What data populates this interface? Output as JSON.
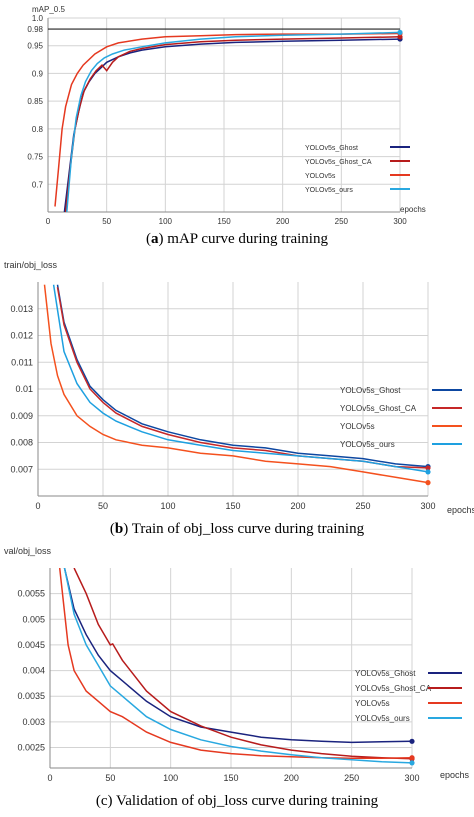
{
  "panels": [
    {
      "caption_letter": "a",
      "caption_text": " mAP curve during training",
      "caption_prefix": "(",
      "caption_suffix": ")"
    },
    {
      "caption_letter": "b",
      "caption_text": " Train of obj_loss curve during training",
      "caption_prefix": "(",
      "caption_suffix": ")"
    },
    {
      "caption_letter": "",
      "caption_text": "(c) Validation of obj_loss curve during training",
      "caption_prefix": "",
      "caption_suffix": ""
    }
  ],
  "chart_data": [
    {
      "type": "line",
      "ylabel": "mAP_0.5",
      "xlabel": "epochs",
      "xlim": [
        0,
        300
      ],
      "ylim": [
        0.65,
        1.0
      ],
      "xticks": [
        0,
        50,
        100,
        150,
        200,
        250,
        300
      ],
      "yticks": [
        {
          "v": 0.7,
          "label": "0.7"
        },
        {
          "v": 0.75,
          "label": "0.75"
        },
        {
          "v": 0.8,
          "label": "0.8"
        },
        {
          "v": 0.85,
          "label": "0.85"
        },
        {
          "v": 0.9,
          "label": "0.9"
        },
        {
          "v": 0.95,
          "label": "0.95"
        },
        {
          "v": 0.98,
          "label": "0.98"
        },
        {
          "v": 1.0,
          "label": "1.0"
        }
      ],
      "reference_line": 0.98,
      "grid": true,
      "legend_position": "right",
      "series": [
        {
          "name": "YOLOv5s_Ghost",
          "color": "#1a237e",
          "x": [
            14,
            18,
            22,
            26,
            30,
            35,
            40,
            45,
            50,
            60,
            70,
            80,
            100,
            130,
            160,
            200,
            250,
            300
          ],
          "y": [
            0.65,
            0.72,
            0.79,
            0.83,
            0.865,
            0.885,
            0.9,
            0.91,
            0.92,
            0.93,
            0.937,
            0.942,
            0.948,
            0.953,
            0.956,
            0.958,
            0.96,
            0.962
          ]
        },
        {
          "name": "YOLOv5s_Ghost_CA",
          "color": "#b71c1c",
          "x": [
            15,
            19,
            23,
            27,
            31,
            36,
            41,
            46,
            50,
            55,
            60,
            70,
            80,
            100,
            130,
            160,
            200,
            250,
            300
          ],
          "y": [
            0.65,
            0.73,
            0.8,
            0.84,
            0.87,
            0.89,
            0.905,
            0.915,
            0.905,
            0.92,
            0.93,
            0.94,
            0.945,
            0.952,
            0.957,
            0.96,
            0.962,
            0.964,
            0.966
          ]
        },
        {
          "name": "YOLOv5s",
          "color": "#e53920",
          "x": [
            6,
            9,
            12,
            15,
            20,
            25,
            30,
            40,
            50,
            60,
            80,
            100,
            130,
            160,
            200,
            250,
            300
          ],
          "y": [
            0.66,
            0.73,
            0.8,
            0.84,
            0.88,
            0.9,
            0.915,
            0.935,
            0.948,
            0.955,
            0.962,
            0.966,
            0.968,
            0.97,
            0.971,
            0.971,
            0.972
          ]
        },
        {
          "name": "YOLOv5s_ours",
          "color": "#29a8e0",
          "x": [
            16,
            20,
            24,
            28,
            32,
            37,
            42,
            48,
            55,
            65,
            80,
            100,
            130,
            160,
            200,
            250,
            300
          ],
          "y": [
            0.65,
            0.75,
            0.82,
            0.86,
            0.885,
            0.905,
            0.918,
            0.928,
            0.935,
            0.942,
            0.948,
            0.955,
            0.962,
            0.966,
            0.969,
            0.971,
            0.974
          ]
        }
      ]
    },
    {
      "type": "line",
      "ylabel": "train/obj_loss",
      "xlabel": "epochs",
      "xlim": [
        0,
        300
      ],
      "ylim": [
        0.006,
        0.014
      ],
      "xticks": [
        0,
        50,
        100,
        150,
        200,
        250,
        300
      ],
      "yticks": [
        {
          "v": 0.007,
          "label": "0.007"
        },
        {
          "v": 0.008,
          "label": "0.008"
        },
        {
          "v": 0.009,
          "label": "0.009"
        },
        {
          "v": 0.01,
          "label": "0.01"
        },
        {
          "v": 0.011,
          "label": "0.011"
        },
        {
          "v": 0.012,
          "label": "0.012"
        },
        {
          "v": 0.013,
          "label": "0.013"
        }
      ],
      "grid": true,
      "legend_position": "right",
      "series": [
        {
          "name": "YOLOv5s_Ghost",
          "color": "#0d47a1",
          "x": [
            15,
            20,
            30,
            40,
            50,
            60,
            80,
            100,
            125,
            150,
            175,
            200,
            225,
            250,
            275,
            300
          ],
          "y": [
            0.0139,
            0.0125,
            0.0111,
            0.0101,
            0.0096,
            0.0092,
            0.0087,
            0.0084,
            0.0081,
            0.0079,
            0.0078,
            0.0076,
            0.0075,
            0.0074,
            0.0072,
            0.0071
          ]
        },
        {
          "name": "YOLOv5s_Ghost_CA",
          "color": "#c62828",
          "x": [
            15,
            20,
            30,
            40,
            50,
            60,
            80,
            100,
            125,
            150,
            175,
            200,
            225,
            250,
            275,
            300
          ],
          "y": [
            0.0138,
            0.0124,
            0.011,
            0.01,
            0.0095,
            0.0091,
            0.0086,
            0.0083,
            0.008,
            0.0078,
            0.0077,
            0.0075,
            0.0074,
            0.0073,
            0.0071,
            0.00705
          ]
        },
        {
          "name": "YOLOv5s",
          "color": "#f4511e",
          "x": [
            5,
            10,
            15,
            20,
            30,
            40,
            50,
            60,
            80,
            100,
            125,
            150,
            175,
            200,
            225,
            250,
            275,
            300
          ],
          "y": [
            0.0139,
            0.0117,
            0.0105,
            0.0098,
            0.009,
            0.0086,
            0.0083,
            0.0081,
            0.0079,
            0.0078,
            0.0076,
            0.0075,
            0.0073,
            0.0072,
            0.0071,
            0.0069,
            0.0067,
            0.0065
          ]
        },
        {
          "name": "YOLOv5s_ours",
          "color": "#1ea0e0",
          "x": [
            12,
            20,
            30,
            40,
            50,
            60,
            80,
            100,
            125,
            150,
            175,
            200,
            225,
            250,
            275,
            300
          ],
          "y": [
            0.0139,
            0.0114,
            0.0102,
            0.0095,
            0.0091,
            0.0088,
            0.0084,
            0.0081,
            0.0079,
            0.0077,
            0.0076,
            0.0075,
            0.0074,
            0.0073,
            0.0071,
            0.0069
          ]
        }
      ]
    },
    {
      "type": "line",
      "ylabel": "val/obj_loss",
      "xlabel": "epochs",
      "xlim": [
        0,
        300
      ],
      "ylim": [
        0.0021,
        0.006
      ],
      "xticks": [
        0,
        50,
        100,
        150,
        200,
        250,
        300
      ],
      "yticks": [
        {
          "v": 0.0025,
          "label": "0.0025"
        },
        {
          "v": 0.003,
          "label": "0.003"
        },
        {
          "v": 0.0035,
          "label": "0.0035"
        },
        {
          "v": 0.004,
          "label": "0.004"
        },
        {
          "v": 0.0045,
          "label": "0.0045"
        },
        {
          "v": 0.005,
          "label": "0.005"
        },
        {
          "v": 0.0055,
          "label": "0.0055"
        }
      ],
      "grid": true,
      "legend_position": "right",
      "series": [
        {
          "name": "YOLOv5s_Ghost",
          "color": "#1a237e",
          "x": [
            12,
            20,
            30,
            40,
            50,
            60,
            80,
            100,
            125,
            150,
            175,
            200,
            225,
            250,
            275,
            300
          ],
          "y": [
            0.006,
            0.0052,
            0.0047,
            0.0043,
            0.004,
            0.0038,
            0.0034,
            0.0031,
            0.0029,
            0.0028,
            0.0027,
            0.00265,
            0.00262,
            0.0026,
            0.00261,
            0.00262
          ]
        },
        {
          "name": "YOLOv5s_Ghost_CA",
          "color": "#b71c1c",
          "x": [
            20,
            30,
            40,
            50,
            52,
            60,
            80,
            100,
            125,
            150,
            175,
            200,
            225,
            250,
            275,
            300
          ],
          "y": [
            0.006,
            0.0055,
            0.0049,
            0.0045,
            0.00452,
            0.0042,
            0.0036,
            0.0032,
            0.00292,
            0.0027,
            0.00255,
            0.00245,
            0.00238,
            0.00233,
            0.0023,
            0.00228
          ]
        },
        {
          "name": "YOLOv5s",
          "color": "#e53920",
          "x": [
            8,
            15,
            20,
            30,
            40,
            50,
            60,
            80,
            100,
            125,
            150,
            175,
            200,
            225,
            250,
            275,
            300
          ],
          "y": [
            0.006,
            0.0045,
            0.004,
            0.0036,
            0.0034,
            0.0032,
            0.0031,
            0.0028,
            0.0026,
            0.00245,
            0.00238,
            0.00234,
            0.00232,
            0.0023,
            0.00229,
            0.00229,
            0.0023
          ]
        },
        {
          "name": "YOLOv5s_ours",
          "color": "#29a8e0",
          "x": [
            12,
            20,
            30,
            40,
            50,
            60,
            80,
            100,
            125,
            150,
            175,
            200,
            225,
            250,
            275,
            300
          ],
          "y": [
            0.006,
            0.0051,
            0.0045,
            0.0041,
            0.0037,
            0.0035,
            0.0031,
            0.00285,
            0.00265,
            0.00252,
            0.00243,
            0.00236,
            0.0023,
            0.00226,
            0.00222,
            0.0022
          ]
        }
      ]
    }
  ]
}
